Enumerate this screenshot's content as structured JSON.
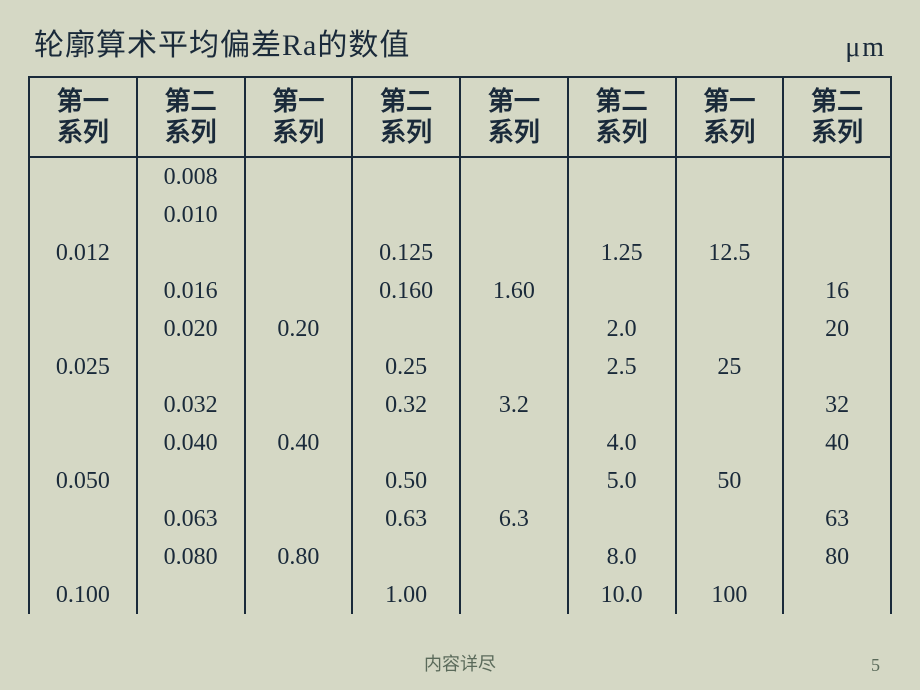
{
  "title": "轮廓算术平均偏差Ra的数值",
  "unit": "μm",
  "colors": {
    "background": "#d5d8c5",
    "text": "#1a2a3a",
    "border": "#1a2a3a",
    "footer": "#5a6a5a"
  },
  "typography": {
    "title_fontsize": 30,
    "header_fontsize": 26,
    "cell_fontsize": 24,
    "footer_fontsize": 18
  },
  "table": {
    "type": "table",
    "columns": [
      {
        "label_line1": "第一",
        "label_line2": "系列",
        "group_sep": false
      },
      {
        "label_line1": "第二",
        "label_line2": "系列",
        "group_sep": true
      },
      {
        "label_line1": "第一",
        "label_line2": "系列",
        "group_sep": false
      },
      {
        "label_line1": "第二",
        "label_line2": "系列",
        "group_sep": true
      },
      {
        "label_line1": "第一",
        "label_line2": "系列",
        "group_sep": false
      },
      {
        "label_line1": "第二",
        "label_line2": "系列",
        "group_sep": true
      },
      {
        "label_line1": "第一",
        "label_line2": "系列",
        "group_sep": false
      },
      {
        "label_line1": "第二",
        "label_line2": "系列",
        "group_sep": false
      }
    ],
    "rows": [
      [
        "",
        "0.008",
        "",
        "",
        "",
        "",
        "",
        ""
      ],
      [
        "",
        "0.010",
        "",
        "",
        "",
        "",
        "",
        ""
      ],
      [
        "0.012",
        "",
        "",
        "0.125",
        "",
        "1.25",
        "12.5",
        ""
      ],
      [
        "",
        "0.016",
        "",
        "0.160",
        "1.60",
        "",
        "",
        "16"
      ],
      [
        "",
        "0.020",
        "0.20",
        "",
        "",
        "2.0",
        "",
        "20"
      ],
      [
        "0.025",
        "",
        "",
        "0.25",
        "",
        "2.5",
        "25",
        ""
      ],
      [
        "",
        "0.032",
        "",
        "0.32",
        "3.2",
        "",
        "",
        "32"
      ],
      [
        "",
        "0.040",
        "0.40",
        "",
        "",
        "4.0",
        "",
        "40"
      ],
      [
        "0.050",
        "",
        "",
        "0.50",
        "",
        "5.0",
        "50",
        ""
      ],
      [
        "",
        "0.063",
        "",
        "0.63",
        "6.3",
        "",
        "",
        "63"
      ],
      [
        "",
        "0.080",
        "0.80",
        "",
        "",
        "8.0",
        "",
        "80"
      ],
      [
        "0.100",
        "",
        "",
        "1.00",
        "",
        "10.0",
        "100",
        ""
      ]
    ]
  },
  "footer_text": "内容详尽",
  "slide_number": "5"
}
